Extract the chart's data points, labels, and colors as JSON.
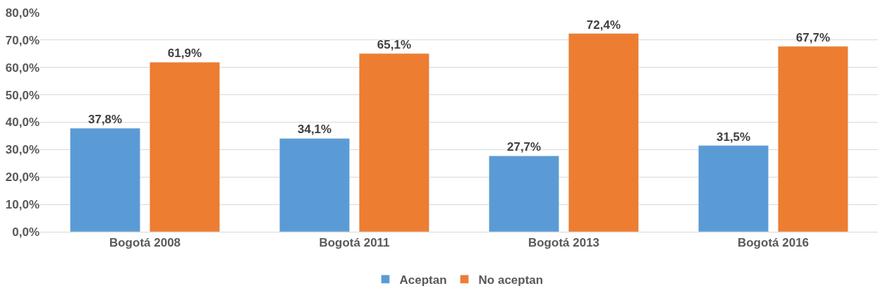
{
  "chart_data": {
    "type": "bar",
    "categories": [
      "Bogotá 2008",
      "Bogotá 2011",
      "Bogotá 2013",
      "Bogotá 2016"
    ],
    "series": [
      {
        "name": "Aceptan",
        "color": "#5b9bd5",
        "values": [
          37.8,
          34.1,
          27.7,
          31.5
        ],
        "value_labels": [
          "37,8%",
          "34,1%",
          "27,7%",
          "31,5%"
        ]
      },
      {
        "name": "No aceptan",
        "color": "#ed7d31",
        "values": [
          61.9,
          65.1,
          72.4,
          67.7
        ],
        "value_labels": [
          "61,9%",
          "65,1%",
          "72,4%",
          "67,7%"
        ]
      }
    ],
    "ylim": [
      0,
      80
    ],
    "yticks": [
      {
        "value": 0,
        "label": "0,0%"
      },
      {
        "value": 10,
        "label": "10,0%"
      },
      {
        "value": 20,
        "label": "20,0%"
      },
      {
        "value": 30,
        "label": "30,0%"
      },
      {
        "value": 40,
        "label": "40,0%"
      },
      {
        "value": 50,
        "label": "50,0%"
      },
      {
        "value": 60,
        "label": "60,0%"
      },
      {
        "value": 70,
        "label": "70,0%"
      },
      {
        "value": 80,
        "label": "80,0%"
      }
    ],
    "grid": "y",
    "legend": "bottom"
  }
}
